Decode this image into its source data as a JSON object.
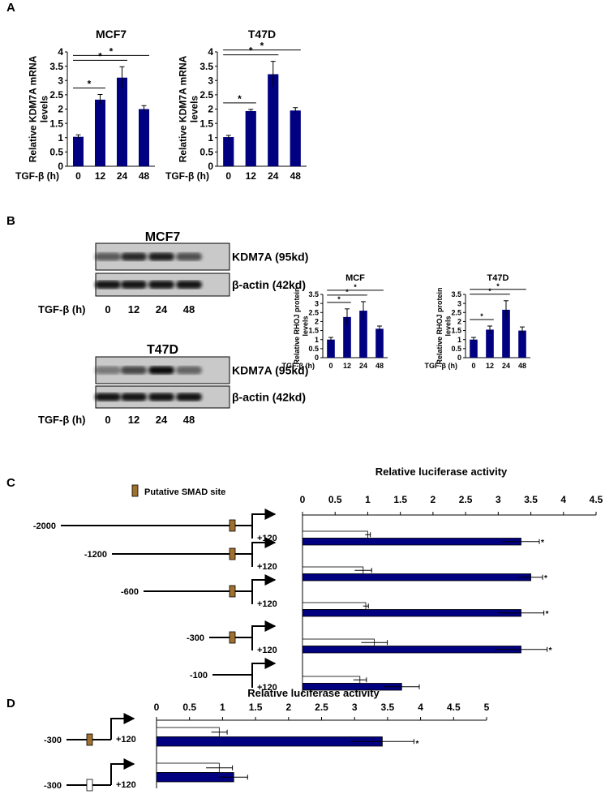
{
  "panel_labels": [
    "A",
    "B",
    "C",
    "D"
  ],
  "chart_data": [
    {
      "type": "bar",
      "title": "MCF7",
      "y_label": "Relative KDM7A mRNA levels",
      "x_label": "TGF-β (h)",
      "categories": [
        "0",
        "12",
        "24",
        "48"
      ],
      "values": [
        1.03,
        2.33,
        3.1,
        2.0
      ],
      "errors": [
        0.07,
        0.18,
        0.38,
        0.12
      ],
      "color": "#000080",
      "ylim": [
        0,
        4
      ],
      "yticks": [
        0,
        0.5,
        1,
        1.5,
        2,
        2.5,
        3,
        3.5,
        4
      ],
      "significance": [
        {
          "categories": [
            0,
            1
          ],
          "label": "*"
        },
        {
          "categories": [
            0,
            2
          ],
          "label": "*"
        },
        {
          "categories": [
            0,
            3
          ],
          "label": "*"
        }
      ]
    },
    {
      "type": "bar",
      "title": "T47D",
      "y_label": "Relative KDM7A mRNA levels",
      "x_label": "TGF-β (h)",
      "categories": [
        "0",
        "12",
        "24",
        "48"
      ],
      "values": [
        1.02,
        1.93,
        3.22,
        1.95
      ],
      "errors": [
        0.06,
        0.06,
        0.45,
        0.1
      ],
      "color": "#000080",
      "ylim": [
        0,
        4
      ],
      "yticks": [
        0,
        0.5,
        1,
        1.5,
        2,
        2.5,
        3,
        3.5,
        4
      ],
      "significance": [
        {
          "categories": [
            0,
            1
          ],
          "label": "*"
        },
        {
          "categories": [
            0,
            2
          ],
          "label": "*"
        },
        {
          "categories": [
            0,
            3
          ],
          "label": "*"
        }
      ]
    },
    {
      "type": "bar",
      "title": "MCF",
      "y_label": "Relative RHOJ protein levels",
      "x_label": "TGF-β (h)",
      "categories": [
        "0",
        "12",
        "24",
        "48"
      ],
      "values": [
        1.0,
        2.25,
        2.6,
        1.6
      ],
      "errors": [
        0.12,
        0.45,
        0.5,
        0.15
      ],
      "color": "#000080",
      "ylim": [
        0,
        3.5
      ],
      "yticks": [
        0,
        0.5,
        1,
        1.5,
        2,
        2.5,
        3,
        3.5
      ],
      "significance": [
        {
          "categories": [
            0,
            1
          ],
          "label": "*"
        },
        {
          "categories": [
            0,
            2
          ],
          "label": "*"
        },
        {
          "categories": [
            0,
            3
          ],
          "label": "*"
        }
      ]
    },
    {
      "type": "bar",
      "title": "T47D",
      "y_label": "Relative RHOJ protein levels",
      "x_label": "TGF-β (h)",
      "categories": [
        "0",
        "12",
        "24",
        "48"
      ],
      "values": [
        1.0,
        1.55,
        2.65,
        1.5
      ],
      "errors": [
        0.12,
        0.2,
        0.5,
        0.2
      ],
      "color": "#000080",
      "ylim": [
        0,
        3.5
      ],
      "yticks": [
        0,
        0.5,
        1,
        1.5,
        2,
        2.5,
        3,
        3.5
      ],
      "significance": [
        {
          "categories": [
            0,
            1
          ],
          "label": "*"
        },
        {
          "categories": [
            0,
            2
          ],
          "label": "*"
        },
        {
          "categories": [
            0,
            3
          ],
          "label": "*"
        }
      ]
    },
    {
      "type": "hbar",
      "title": "Relative luciferase activity",
      "xlim": [
        0,
        4.5
      ],
      "xticks": [
        0,
        0.5,
        1,
        1.5,
        2,
        2.5,
        3,
        3.5,
        4,
        4.5
      ],
      "series": [
        {
          "color": "#ffffff",
          "values": [
            1.0,
            0.93,
            0.97,
            1.1,
            0.88
          ],
          "errors": [
            0.04,
            0.13,
            0.04,
            0.2,
            0.1
          ]
        },
        {
          "color": "#000080",
          "values": [
            3.35,
            3.5,
            3.35,
            3.35,
            1.52
          ],
          "errors": [
            0.28,
            0.18,
            0.35,
            0.4,
            0.27
          ]
        }
      ],
      "significance": [
        {
          "group": 0,
          "label": "*"
        },
        {
          "group": 1,
          "label": "*"
        },
        {
          "group": 2,
          "label": "*"
        },
        {
          "group": 3,
          "label": "*"
        }
      ]
    },
    {
      "type": "hbar",
      "title": "Relative luciferase activity",
      "xlim": [
        0,
        5
      ],
      "xticks": [
        0,
        0.5,
        1,
        1.5,
        2,
        2.5,
        3,
        3.5,
        4,
        4.5,
        5
      ],
      "series": [
        {
          "color": "#ffffff",
          "values": [
            0.95,
            0.95
          ],
          "errors": [
            0.12,
            0.2
          ]
        },
        {
          "color": "#000080",
          "values": [
            3.42,
            1.17
          ],
          "errors": [
            0.48,
            0.21
          ]
        }
      ],
      "significance": [
        {
          "group": 0,
          "label": "*"
        }
      ]
    }
  ],
  "blots": [
    {
      "title": "MCF7",
      "bands": [
        "KDM7A (95kd)",
        "β-actin (42kd)"
      ],
      "x_label": "TGF-β (h)",
      "lanes": [
        "0",
        "12",
        "24",
        "48"
      ]
    },
    {
      "title": "T47D",
      "bands": [
        "KDM7A (95kd)",
        "β-actin (42kd)"
      ],
      "x_label": "TGF-β (h)",
      "lanes": [
        "0",
        "12",
        "24",
        "48"
      ]
    }
  ],
  "constructs_c": {
    "legend": "Putative SMAD site",
    "items": [
      {
        "start": "-2000",
        "end": "+120",
        "smad": true
      },
      {
        "start": "-1200",
        "end": "+120",
        "smad": true
      },
      {
        "start": "-600",
        "end": "+120",
        "smad": true
      },
      {
        "start": "-300",
        "end": "+120",
        "smad": true
      },
      {
        "start": "-100",
        "end": "+120",
        "smad": false
      }
    ]
  },
  "constructs_d": {
    "items": [
      {
        "start": "-300",
        "end": "+120",
        "smad": true,
        "mutated": false
      },
      {
        "start": "-300",
        "end": "+120",
        "smad": true,
        "mutated": true
      }
    ]
  }
}
